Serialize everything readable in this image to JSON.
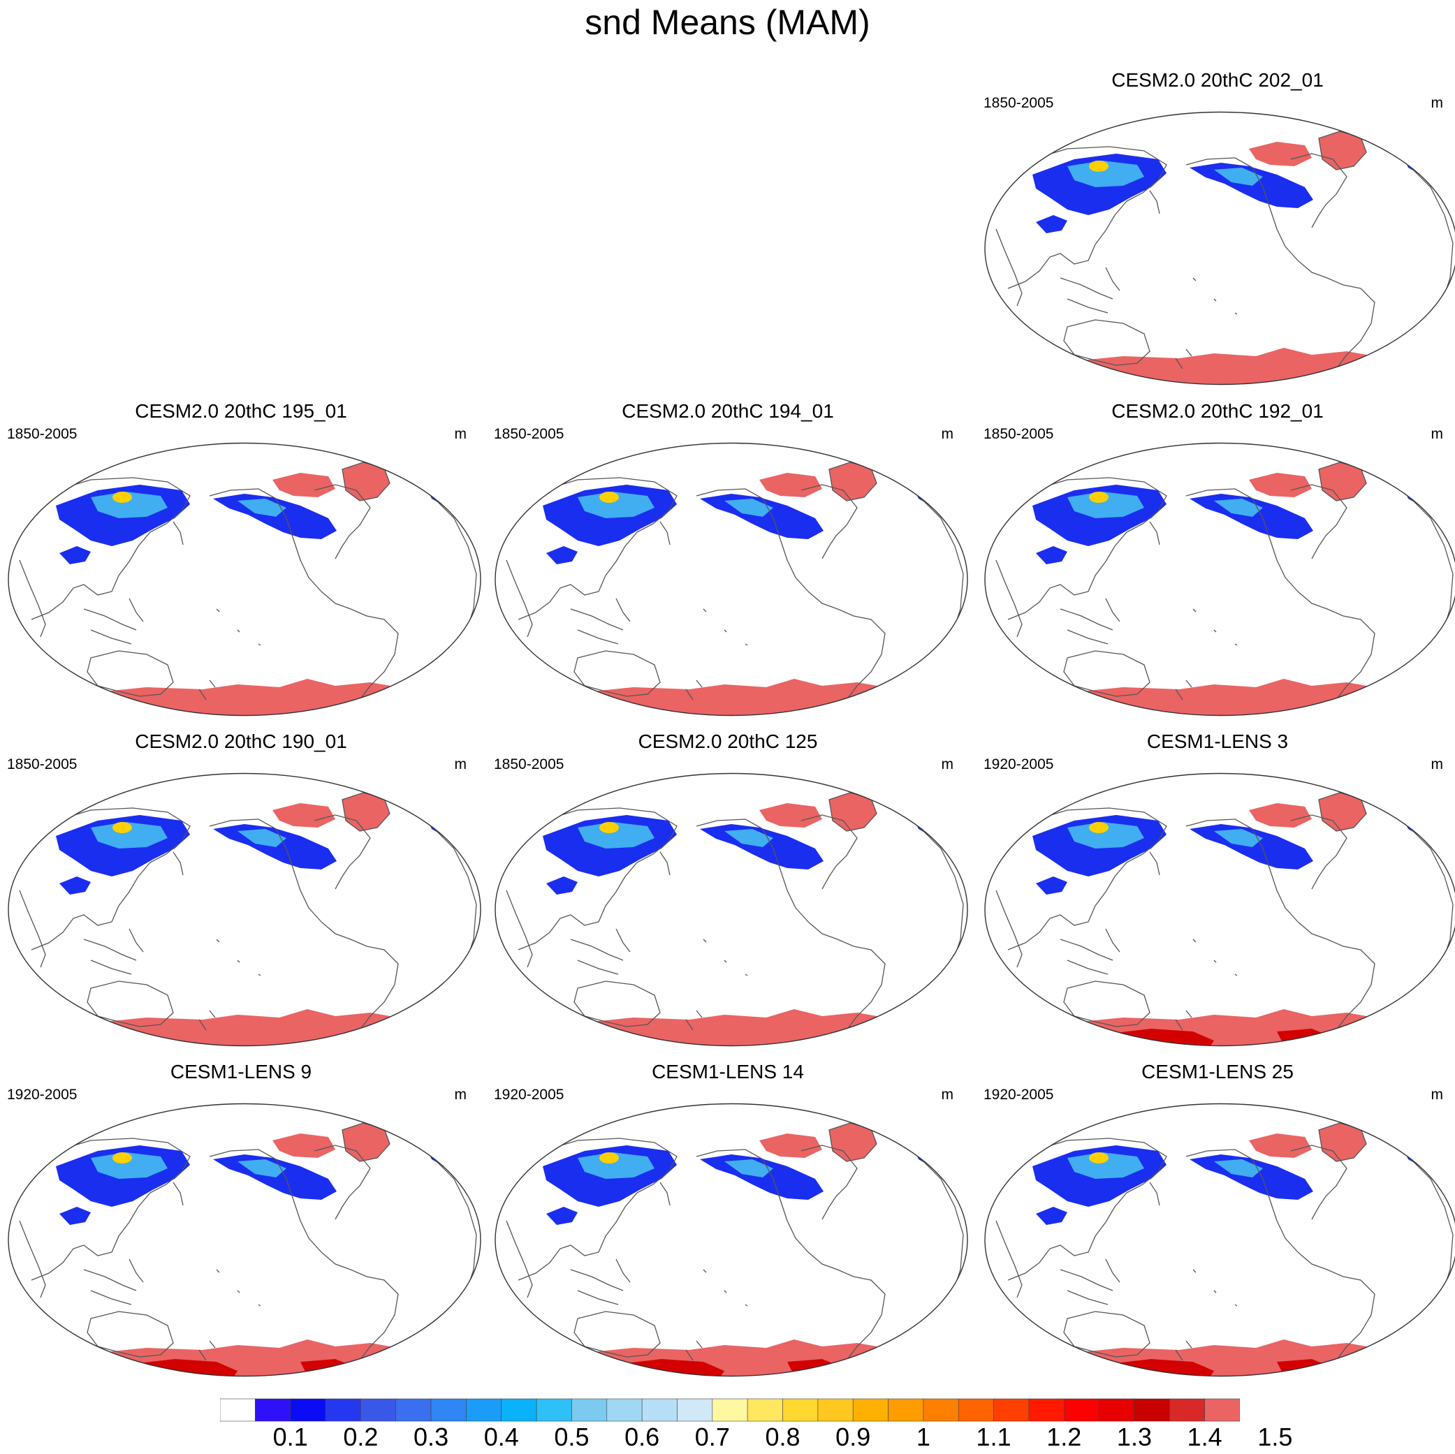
{
  "title": "snd Means (MAM)",
  "panels": [
    {
      "title": "CESM2.0 20thC 202_01",
      "period": "1850-2005",
      "units": "m",
      "antarctic": "uniform"
    },
    {
      "title": "CESM2.0 20thC 195_01",
      "period": "1850-2005",
      "units": "m",
      "antarctic": "uniform"
    },
    {
      "title": "CESM2.0 20thC 194_01",
      "period": "1850-2005",
      "units": "m",
      "antarctic": "uniform"
    },
    {
      "title": "CESM2.0 20thC 192_01",
      "period": "1850-2005",
      "units": "m",
      "antarctic": "uniform"
    },
    {
      "title": "CESM2.0 20thC 190_01",
      "period": "1850-2005",
      "units": "m",
      "antarctic": "uniform"
    },
    {
      "title": "CESM2.0 20thC 125",
      "period": "1850-2005",
      "units": "m",
      "antarctic": "uniform"
    },
    {
      "title": "CESM1-LENS 3",
      "period": "1920-2005",
      "units": "m",
      "antarctic": "mixed"
    },
    {
      "title": "CESM1-LENS 9",
      "period": "1920-2005",
      "units": "m",
      "antarctic": "mixed"
    },
    {
      "title": "CESM1-LENS 14",
      "period": "1920-2005",
      "units": "m",
      "antarctic": "mixed"
    },
    {
      "title": "CESM1-LENS 25",
      "period": "1920-2005",
      "units": "m",
      "antarctic": "mixed"
    }
  ],
  "colorbar": {
    "labels": [
      "0.1",
      "0.2",
      "0.3",
      "0.4",
      "0.5",
      "0.6",
      "0.7",
      "0.8",
      "0.9",
      "1",
      "1.1",
      "1.2",
      "1.3",
      "1.4",
      "1.5"
    ],
    "colors": [
      "#ffffff",
      "#3010f8",
      "#0a0cf6",
      "#2538f0",
      "#3a58e8",
      "#3a6ff0",
      "#2f86f4",
      "#1a9cf8",
      "#0ab2fa",
      "#2ec0f6",
      "#7ccaf0",
      "#a0d8f4",
      "#b6def6",
      "#d0e8f8",
      "#fff8a0",
      "#ffe860",
      "#ffd830",
      "#ffc820",
      "#ffb000",
      "#ff9c00",
      "#ff8000",
      "#ff6400",
      "#ff4000",
      "#ff1a00",
      "#ff0000",
      "#e60000",
      "#c80000",
      "#d82828",
      "#ea6464"
    ]
  },
  "palette": {
    "low": "#1a2ef0",
    "mid": "#40aef0",
    "high": "#ffd000",
    "max": "#ea6464",
    "deep": "#d40000",
    "coast": "#555555"
  }
}
